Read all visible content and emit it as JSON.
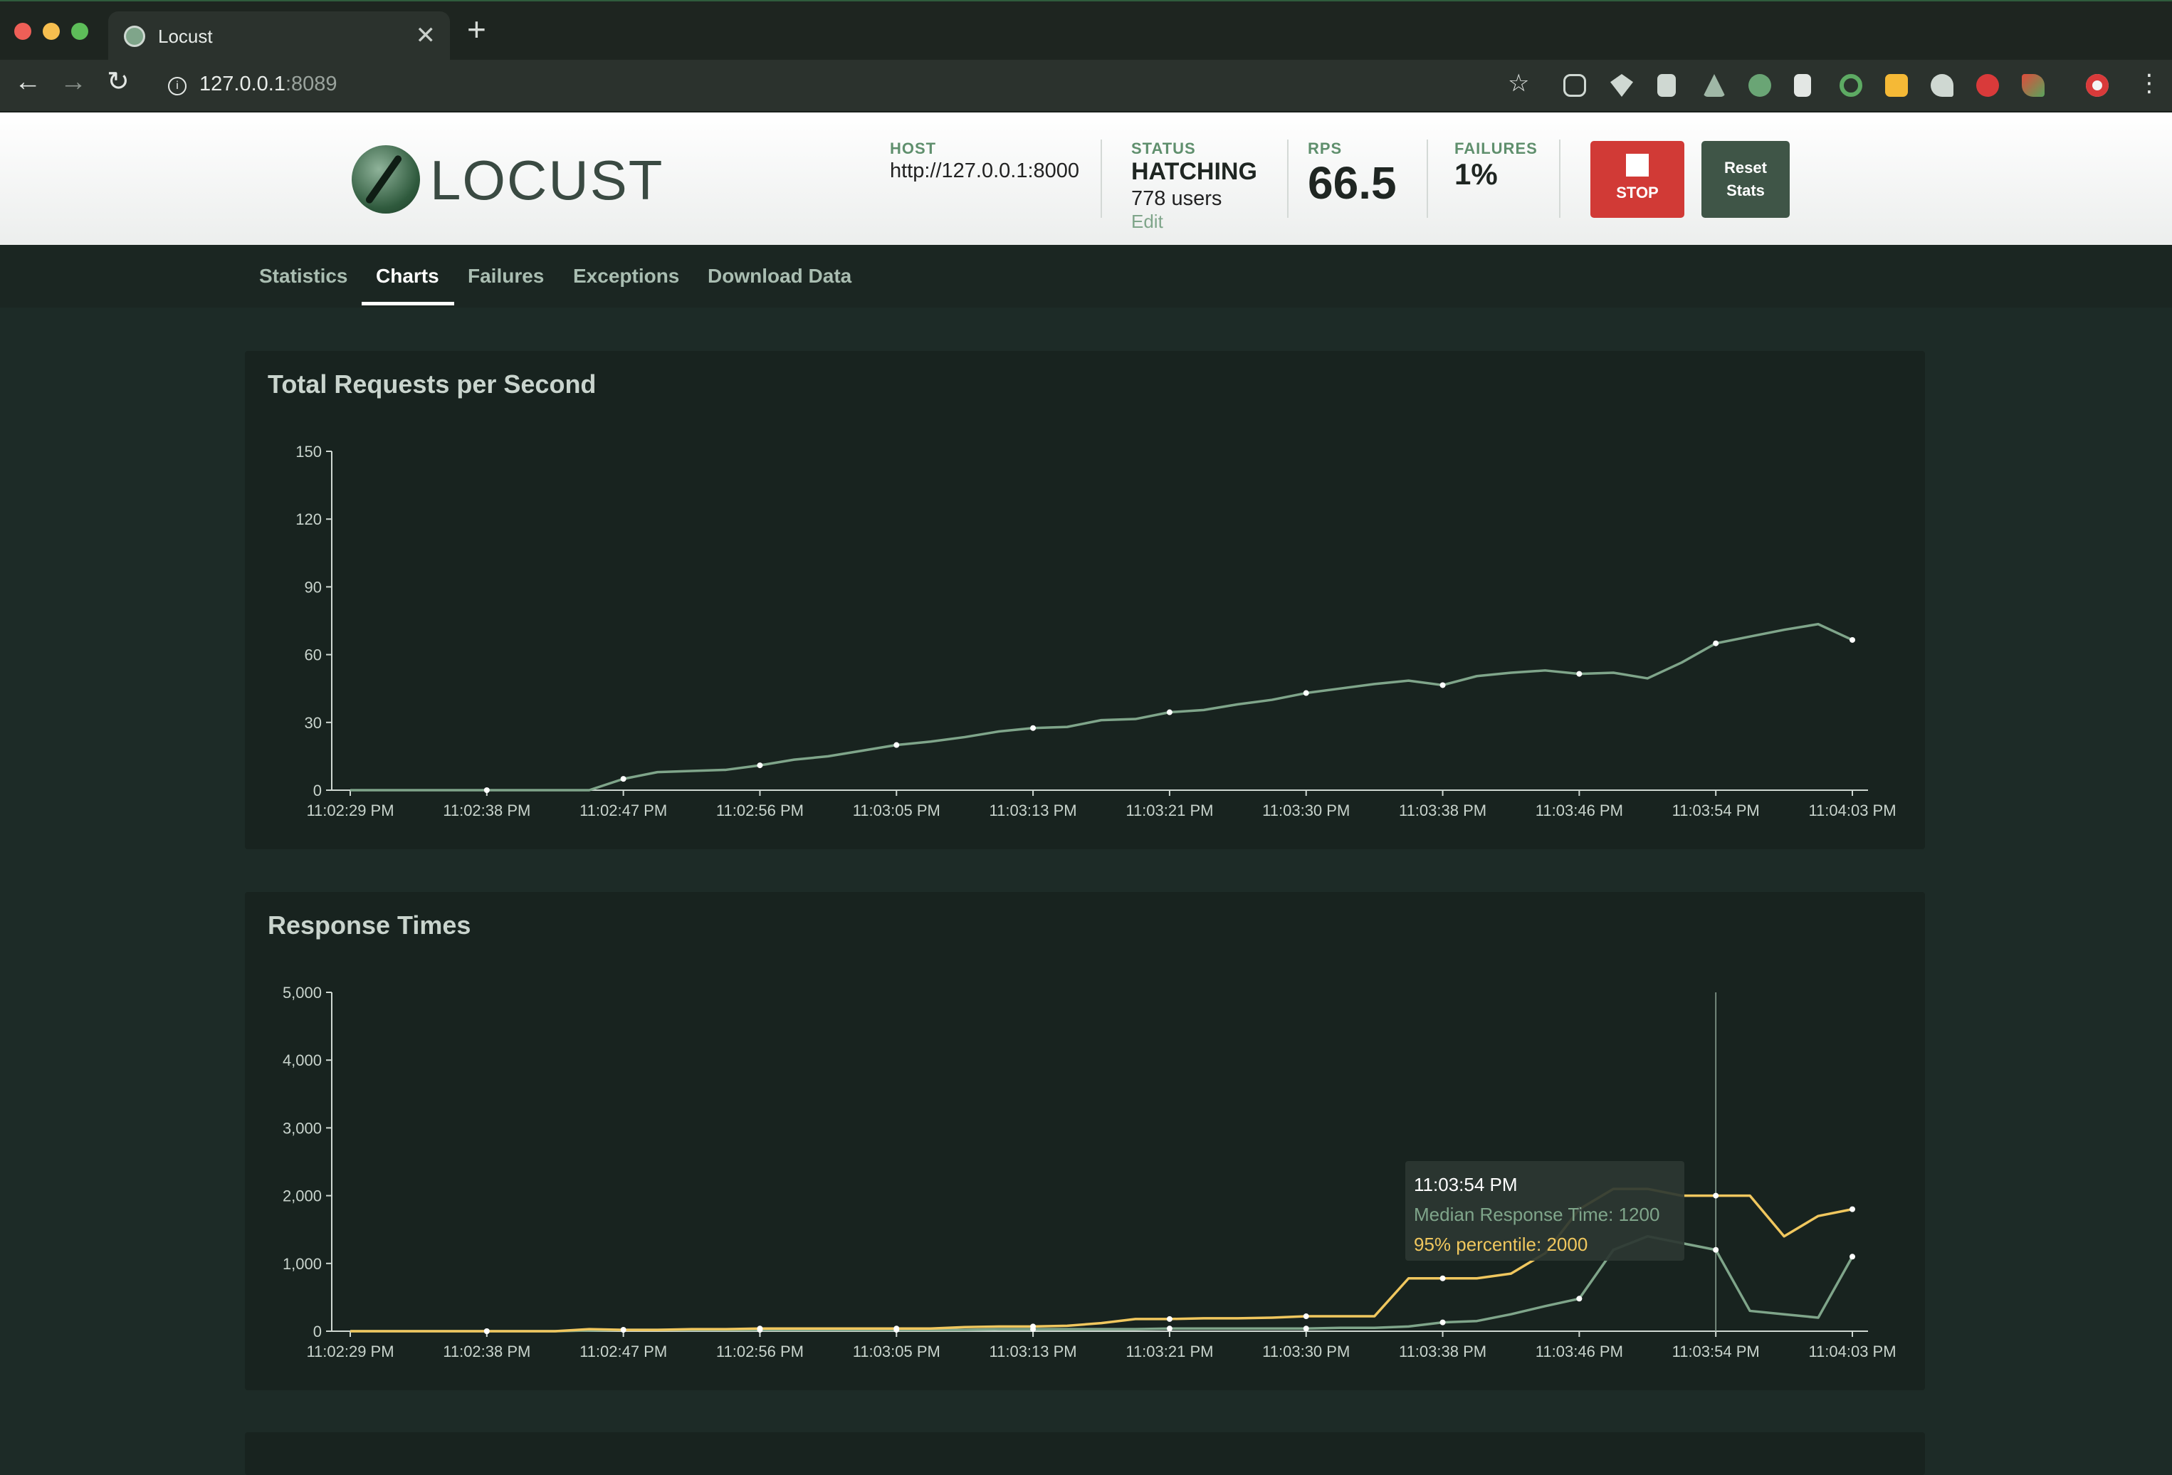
{
  "browser": {
    "tab_title": "Locust",
    "url_host": "127.0.0.1",
    "url_port": ":8089"
  },
  "header": {
    "logo_text": "LOCUST",
    "host_label": "HOST",
    "host_value": "http://127.0.0.1:8000",
    "status_label": "STATUS",
    "status_value": "HATCHING",
    "users_value": "778 users",
    "edit_label": "Edit",
    "rps_label": "RPS",
    "rps_value": "66.5",
    "failures_label": "FAILURES",
    "failures_value": "1%",
    "stop_label": "STOP",
    "reset_label_line1": "Reset",
    "reset_label_line2": "Stats",
    "colors": {
      "stop": "#d13a36",
      "reset": "#3f5547",
      "label": "#5f8f6d"
    }
  },
  "nav": {
    "tabs": [
      {
        "label": "Statistics",
        "active": false
      },
      {
        "label": "Charts",
        "active": true
      },
      {
        "label": "Failures",
        "active": false
      },
      {
        "label": "Exceptions",
        "active": false
      },
      {
        "label": "Download Data",
        "active": false
      }
    ]
  },
  "chart_data": [
    {
      "type": "line",
      "title": "Total Requests per Second",
      "x_ticks": [
        "11:02:29 PM",
        "11:02:38 PM",
        "11:02:47 PM",
        "11:02:56 PM",
        "11:03:05 PM",
        "11:03:13 PM",
        "11:03:21 PM",
        "11:03:30 PM",
        "11:03:38 PM",
        "11:03:46 PM",
        "11:03:54 PM",
        "11:04:03 PM"
      ],
      "ylim": [
        0,
        150
      ],
      "y_ticks": [
        0,
        30,
        60,
        90,
        120,
        150
      ],
      "y_tick_labels": [
        "0",
        "30",
        "60",
        "90",
        "120",
        "150"
      ],
      "series": [
        {
          "color": "#7fa58a",
          "values": [
            0,
            0,
            0,
            0,
            0,
            0,
            0,
            0,
            5,
            8,
            8.5,
            9,
            11,
            13.5,
            15,
            17.5,
            20,
            21.5,
            23.5,
            26,
            27.5,
            28,
            31,
            31.5,
            34.5,
            35.5,
            38,
            40,
            43,
            45,
            47,
            48.5,
            46.5,
            50.5,
            52,
            53,
            51.5,
            52,
            49.5,
            56.5,
            65,
            68,
            71,
            73.5,
            66.5
          ]
        }
      ],
      "grid": false,
      "legend": "none"
    },
    {
      "type": "line",
      "title": "Response Times",
      "x_ticks": [
        "11:02:29 PM",
        "11:02:38 PM",
        "11:02:47 PM",
        "11:02:56 PM",
        "11:03:05 PM",
        "11:03:13 PM",
        "11:03:21 PM",
        "11:03:30 PM",
        "11:03:38 PM",
        "11:03:46 PM",
        "11:03:54 PM",
        "11:04:03 PM"
      ],
      "ylim": [
        0,
        5000
      ],
      "y_ticks": [
        0,
        1000,
        2000,
        3000,
        4000,
        5000
      ],
      "y_tick_labels": [
        "0",
        "1,000",
        "2,000",
        "3,000",
        "4,000",
        "5,000"
      ],
      "series": [
        {
          "name": "Median Response Time",
          "color": "#7fa58a",
          "values": [
            0,
            0,
            0,
            0,
            0,
            0,
            0,
            10,
            20,
            20,
            20,
            20,
            20,
            20,
            20,
            20,
            20,
            20,
            20,
            30,
            30,
            30,
            30,
            30,
            40,
            40,
            40,
            40,
            40,
            50,
            50,
            70,
            130,
            150,
            250,
            370,
            480,
            1200,
            1400,
            1300,
            1200,
            300,
            250,
            200,
            1100
          ]
        },
        {
          "name": "95% percentile",
          "color": "#f0c75e",
          "values": [
            0,
            0,
            0,
            0,
            0,
            0,
            0,
            30,
            20,
            20,
            30,
            30,
            40,
            40,
            40,
            40,
            40,
            40,
            60,
            70,
            70,
            80,
            120,
            180,
            180,
            190,
            190,
            200,
            220,
            220,
            220,
            780,
            780,
            780,
            850,
            1150,
            1800,
            2100,
            2100,
            2000,
            2000,
            2000,
            1400,
            1700,
            1800
          ]
        }
      ],
      "tooltip": {
        "time": "11:03:54 PM",
        "median_text": "Median Response Time: 1200",
        "p95_text": "95% percentile: 2000"
      },
      "grid": false,
      "legend": "tooltip"
    }
  ]
}
